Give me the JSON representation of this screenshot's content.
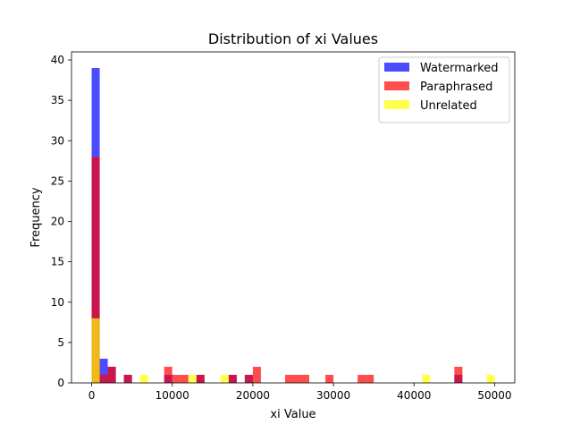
{
  "chart_data": {
    "type": "histogram",
    "title": "Distribution of xi Values",
    "xlabel": "xi Value",
    "ylabel": "Frequency",
    "xlim": [
      -2500,
      52500
    ],
    "ylim": [
      0,
      41
    ],
    "xticks": [
      0,
      10000,
      20000,
      30000,
      40000,
      50000
    ],
    "yticks": [
      0,
      5,
      10,
      15,
      20,
      25,
      30,
      35,
      40
    ],
    "bin_width": 1000,
    "bin_start": 0,
    "grid": false,
    "legend_position": "upper right",
    "series": [
      {
        "name": "Watermarked",
        "color": "#0000ff",
        "alpha": 0.7,
        "bins": [
          {
            "x0": 0,
            "count": 39
          },
          {
            "x0": 1000,
            "count": 3
          },
          {
            "x0": 2000,
            "count": 2
          },
          {
            "x0": 4000,
            "count": 1
          },
          {
            "x0": 9000,
            "count": 1
          },
          {
            "x0": 13000,
            "count": 1
          },
          {
            "x0": 17000,
            "count": 1
          },
          {
            "x0": 19000,
            "count": 1
          },
          {
            "x0": 45000,
            "count": 1
          }
        ]
      },
      {
        "name": "Paraphrased",
        "color": "#ff0000",
        "alpha": 0.7,
        "bins": [
          {
            "x0": 0,
            "count": 28
          },
          {
            "x0": 1000,
            "count": 1
          },
          {
            "x0": 2000,
            "count": 2
          },
          {
            "x0": 4000,
            "count": 1
          },
          {
            "x0": 9000,
            "count": 2
          },
          {
            "x0": 10000,
            "count": 1
          },
          {
            "x0": 11000,
            "count": 1
          },
          {
            "x0": 13000,
            "count": 1
          },
          {
            "x0": 17000,
            "count": 1
          },
          {
            "x0": 19000,
            "count": 1
          },
          {
            "x0": 20000,
            "count": 2
          },
          {
            "x0": 24000,
            "count": 1
          },
          {
            "x0": 25000,
            "count": 1
          },
          {
            "x0": 26000,
            "count": 1
          },
          {
            "x0": 29000,
            "count": 1
          },
          {
            "x0": 33000,
            "count": 1
          },
          {
            "x0": 34000,
            "count": 1
          },
          {
            "x0": 45000,
            "count": 2
          }
        ]
      },
      {
        "name": "Unrelated",
        "color": "#ffff00",
        "alpha": 0.7,
        "bins": [
          {
            "x0": 0,
            "count": 8
          },
          {
            "x0": 6000,
            "count": 1
          },
          {
            "x0": 12000,
            "count": 1
          },
          {
            "x0": 16000,
            "count": 1
          },
          {
            "x0": 41000,
            "count": 1
          },
          {
            "x0": 49000,
            "count": 1
          }
        ]
      }
    ]
  }
}
